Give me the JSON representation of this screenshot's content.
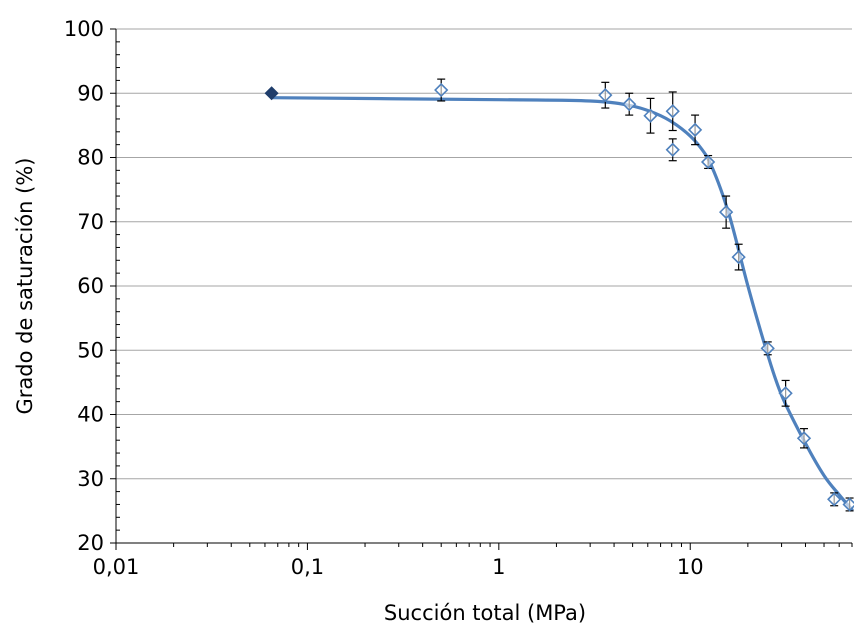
{
  "chart_data": {
    "type": "scatter",
    "xlabel": "Succión total (MPa)",
    "ylabel": "Grado de saturación (%)",
    "x_scale": "log",
    "xlim": [
      0.01,
      70
    ],
    "ylim": [
      20,
      100
    ],
    "x_ticks": [
      {
        "value": 0.01,
        "label": "0,01"
      },
      {
        "value": 0.1,
        "label": "0,1"
      },
      {
        "value": 1,
        "label": "1"
      },
      {
        "value": 10,
        "label": "10"
      }
    ],
    "y_ticks": [
      20,
      30,
      40,
      50,
      60,
      70,
      80,
      90,
      100
    ],
    "grid": "horizontal",
    "legend": "none",
    "colors": {
      "line": "#4f81bd",
      "marker": "#4f81bd",
      "highlight": "#1f3d6b",
      "error_bar": "#000000",
      "grid": "#a6a6a6"
    },
    "series": [
      {
        "type": "scatter-errorbar",
        "marker": "diamond-open",
        "points": [
          {
            "x": 0.065,
            "y": 90.0,
            "err": 0,
            "filled": true
          },
          {
            "x": 0.5,
            "y": 90.5,
            "err": 1.7
          },
          {
            "x": 3.6,
            "y": 89.7,
            "err": 2.0
          },
          {
            "x": 4.8,
            "y": 88.3,
            "err": 1.7
          },
          {
            "x": 6.2,
            "y": 86.5,
            "err": 2.7
          },
          {
            "x": 8.1,
            "y": 87.2,
            "err": 3.0
          },
          {
            "x": 8.1,
            "y": 81.2,
            "err": 1.7
          },
          {
            "x": 10.6,
            "y": 84.3,
            "err": 2.3
          },
          {
            "x": 12.4,
            "y": 79.3,
            "err": 1.0
          },
          {
            "x": 15.4,
            "y": 71.5,
            "err": 2.5
          },
          {
            "x": 17.9,
            "y": 64.5,
            "err": 2.0
          },
          {
            "x": 25.4,
            "y": 50.3,
            "err": 1.0
          },
          {
            "x": 31.5,
            "y": 43.3,
            "err": 2.0
          },
          {
            "x": 39.3,
            "y": 36.3,
            "err": 1.5
          },
          {
            "x": 56.5,
            "y": 26.8,
            "err": 1.0
          },
          {
            "x": 68.0,
            "y": 26.0,
            "err": 1.0
          }
        ]
      },
      {
        "type": "line",
        "points": [
          {
            "x": 0.065,
            "y": 89.3
          },
          {
            "x": 1.0,
            "y": 89.0
          },
          {
            "x": 3.0,
            "y": 88.8
          },
          {
            "x": 5.0,
            "y": 88.0
          },
          {
            "x": 7.0,
            "y": 86.5
          },
          {
            "x": 9.0,
            "y": 84.5
          },
          {
            "x": 11.0,
            "y": 82.0
          },
          {
            "x": 13.0,
            "y": 78.5
          },
          {
            "x": 16.0,
            "y": 71.0
          },
          {
            "x": 20.0,
            "y": 60.0
          },
          {
            "x": 25.0,
            "y": 50.0
          },
          {
            "x": 30.0,
            "y": 43.0
          },
          {
            "x": 40.0,
            "y": 35.5
          },
          {
            "x": 50.0,
            "y": 30.5
          },
          {
            "x": 60.0,
            "y": 27.5
          },
          {
            "x": 70.0,
            "y": 25.2
          }
        ]
      }
    ]
  }
}
